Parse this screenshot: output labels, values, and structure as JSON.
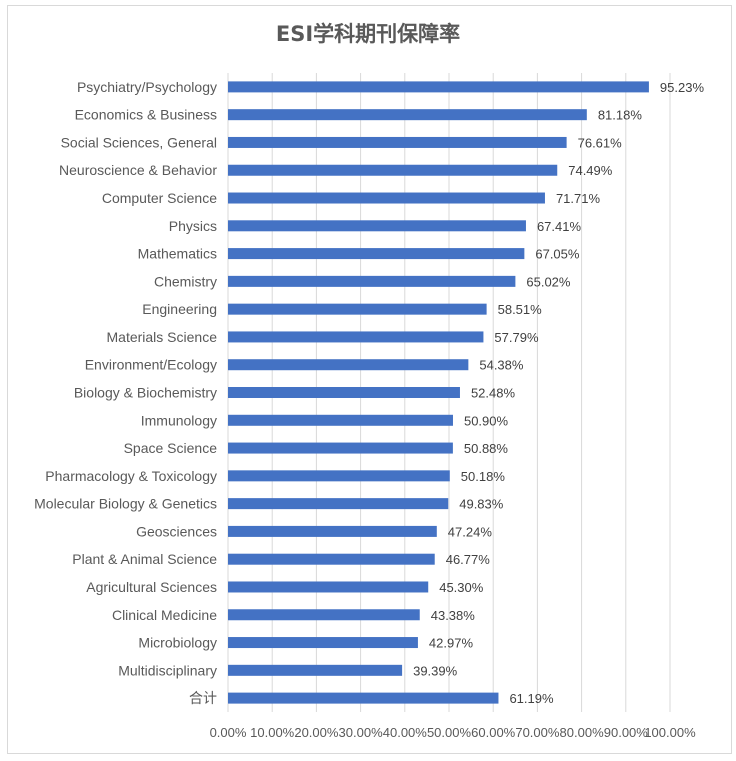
{
  "chart_data": {
    "type": "bar",
    "orientation": "horizontal",
    "title": "ESI学科期刊保障率",
    "xlabel": "",
    "ylabel": "",
    "xlim": [
      0,
      100
    ],
    "grid": true,
    "legend": "none",
    "bar_color": "#4472c4",
    "categories": [
      "Psychiatry/Psychology",
      "Economics & Business",
      "Social Sciences, General",
      "Neuroscience & Behavior",
      "Computer Science",
      "Physics",
      "Mathematics",
      "Chemistry",
      "Engineering",
      "Materials Science",
      "Environment/Ecology",
      "Biology & Biochemistry",
      "Immunology",
      "Space Science",
      "Pharmacology & Toxicology",
      "Molecular Biology & Genetics",
      "Geosciences",
      "Plant & Animal Science",
      "Agricultural Sciences",
      "Clinical Medicine",
      "Microbiology",
      "Multidisciplinary",
      "合计"
    ],
    "values": [
      95.23,
      81.18,
      76.61,
      74.49,
      71.71,
      67.41,
      67.05,
      65.02,
      58.51,
      57.79,
      54.38,
      52.48,
      50.9,
      50.88,
      50.18,
      49.83,
      47.24,
      46.77,
      45.3,
      43.38,
      42.97,
      39.39,
      61.19
    ],
    "value_labels": [
      "95.23%",
      "81.18%",
      "76.61%",
      "74.49%",
      "71.71%",
      "67.41%",
      "67.05%",
      "65.02%",
      "58.51%",
      "57.79%",
      "54.38%",
      "52.48%",
      "50.90%",
      "50.88%",
      "50.18%",
      "49.83%",
      "47.24%",
      "46.77%",
      "45.30%",
      "43.38%",
      "42.97%",
      "39.39%",
      "61.19%"
    ],
    "x_ticks": [
      0,
      10,
      20,
      30,
      40,
      50,
      60,
      70,
      80,
      90,
      100
    ],
    "x_tick_labels": [
      "0.00%",
      "10.00%",
      "20.00%",
      "30.00%",
      "40.00%",
      "50.00%",
      "60.00%",
      "70.00%",
      "80.00%",
      "90.00%",
      "100.00%"
    ]
  }
}
